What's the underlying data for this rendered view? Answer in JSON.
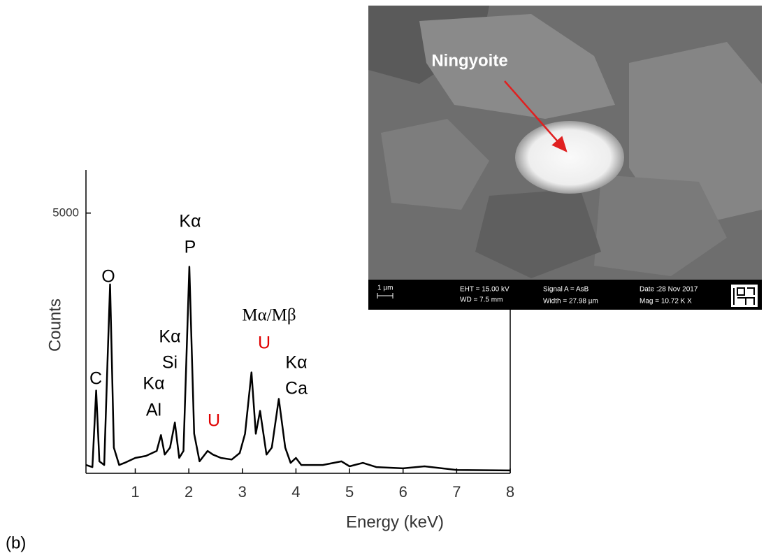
{
  "figure_label": "(b)",
  "chart_data": {
    "type": "line",
    "x_label": "Energy (keV)",
    "y_label": "Counts",
    "x": [
      0.08,
      0.2,
      0.27,
      0.33,
      0.42,
      0.48,
      0.53,
      0.6,
      0.7,
      0.8,
      1.0,
      1.2,
      1.4,
      1.48,
      1.55,
      1.65,
      1.74,
      1.82,
      1.9,
      2.01,
      2.1,
      2.2,
      2.35,
      2.45,
      2.6,
      2.8,
      2.95,
      3.05,
      3.17,
      3.25,
      3.33,
      3.45,
      3.55,
      3.68,
      3.8,
      3.9,
      4.0,
      4.1,
      4.5,
      4.85,
      5.0,
      5.25,
      5.5,
      6.0,
      6.4,
      7.0,
      8.0
    ],
    "values": [
      160,
      120,
      1590,
      230,
      160,
      2100,
      3630,
      495,
      160,
      200,
      295,
      335,
      430,
      735,
      360,
      495,
      975,
      295,
      430,
      3970,
      760,
      230,
      430,
      360,
      295,
      265,
      390,
      760,
      1940,
      760,
      1200,
      360,
      495,
      1430,
      495,
      200,
      295,
      160,
      160,
      230,
      135,
      200,
      120,
      95,
      135,
      65,
      55
    ],
    "color": "#000000",
    "xlim": [
      0.08,
      8
    ],
    "xticks": [
      1,
      2,
      3,
      4,
      5,
      6,
      7,
      8
    ],
    "ylim": [
      0,
      5830
    ],
    "yticks": [
      5000
    ],
    "annotations": [
      {
        "text": "Kα",
        "color": "#000000"
      },
      {
        "text": "P",
        "color": "#000000"
      },
      {
        "text": "O",
        "color": "#000000"
      },
      {
        "text": "C",
        "color": "#000000"
      },
      {
        "text": "Kα",
        "color": "#000000"
      },
      {
        "text": "Si",
        "color": "#000000"
      },
      {
        "text": "Kα",
        "color": "#000000"
      },
      {
        "text": "Al",
        "color": "#000000"
      },
      {
        "text": "U",
        "color": "#e00000"
      },
      {
        "text": "Mα/Mβ",
        "color": "#000000"
      },
      {
        "text": "U",
        "color": "#e00000"
      },
      {
        "text": "Kα",
        "color": "#000000"
      },
      {
        "text": "Ca",
        "color": "#000000"
      }
    ]
  },
  "inset": {
    "label": "Ningyoite",
    "scale_bar": "1 µm",
    "info": [
      "EHT = 15.00 kV",
      "WD = 7.5 mm",
      "Signal A = AsB",
      "Width = 27.98 µm",
      "Date :28 Nov 2017",
      "Mag = 10.72 K X"
    ]
  }
}
